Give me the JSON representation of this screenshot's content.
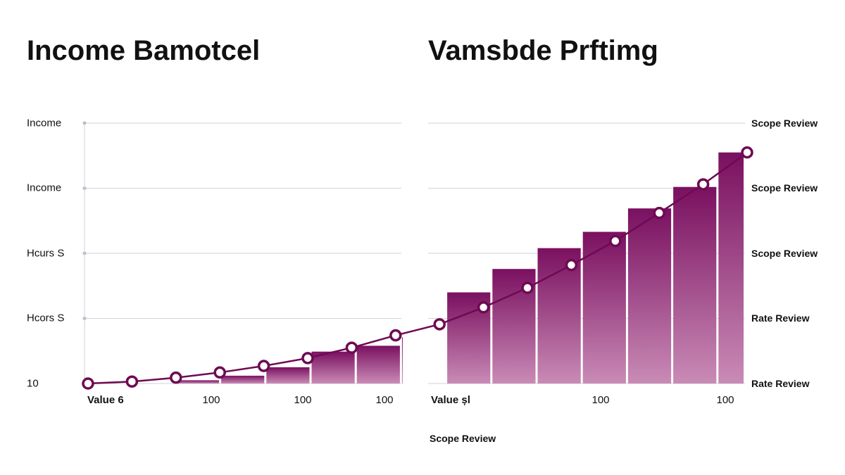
{
  "colors": {
    "accent": "#6e0a52",
    "bar_top": "#7a1060",
    "bar_bottom": "#c98bb6",
    "grid": "#d2d2da",
    "marker_fill": "#ffffff"
  },
  "chart_data": {
    "type": "bar+line",
    "titles": [
      "Income Bamotcel",
      "Vamsbde Prftimg"
    ],
    "left_axis_labels": [
      "Income",
      "Income",
      "Hcurs S",
      "Hcors S",
      "10"
    ],
    "right_axis_labels": [
      "Scope Review",
      "Scope Review",
      "Scope Review",
      "Rate Review",
      "Rate Review"
    ],
    "left_x_labels": [
      "Value 6",
      "100",
      "100",
      "100"
    ],
    "right_x_labels": [
      "Value șl",
      "100",
      "100"
    ],
    "bottom_label": "Scope Review",
    "ylim": [
      0,
      4
    ],
    "grid": true,
    "bars": [
      0.0,
      0.0,
      0.05,
      0.12,
      0.25,
      0.49,
      0.58,
      0.71,
      1.4,
      1.76,
      2.08,
      2.33,
      2.69,
      3.02,
      3.55
    ],
    "line": [
      0.0,
      0.03,
      0.09,
      0.17,
      0.27,
      0.39,
      0.55,
      0.74,
      0.91,
      1.17,
      1.47,
      1.82,
      2.19,
      2.62,
      3.06,
      3.55
    ]
  }
}
